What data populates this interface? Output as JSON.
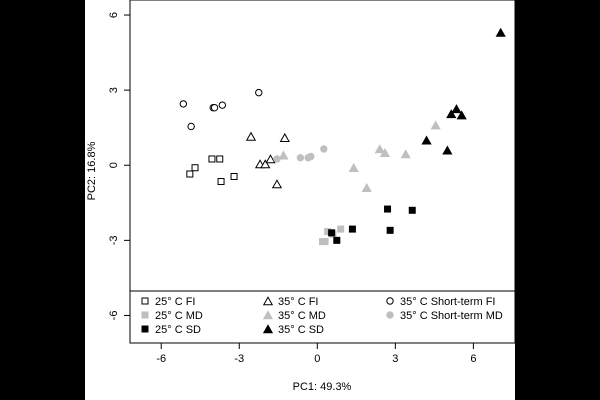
{
  "chart_data": {
    "type": "scatter",
    "xlabel": "PC1: 49.3%",
    "ylabel": "PC2: 16.8%",
    "xlim": [
      -7.2,
      7.6
    ],
    "ylim": [
      -7.1,
      6.6
    ],
    "xticks": [
      -6,
      -3,
      0,
      3,
      6
    ],
    "yticks": [
      -6,
      -3,
      0,
      3,
      6
    ],
    "xtick_labels": [
      "-6",
      "-3",
      "0",
      "3",
      "6"
    ],
    "ytick_labels": [
      "-6",
      "-3",
      "0",
      "3",
      "6"
    ],
    "grid": false,
    "legend_position": "bottom, inside plot",
    "series": [
      {
        "name": "25° C FI",
        "marker": "open-square",
        "color": "#000000",
        "points": [
          [
            -4.9,
            -0.35
          ],
          [
            -4.7,
            -0.1
          ],
          [
            -4.05,
            0.25
          ],
          [
            -3.75,
            0.25
          ],
          [
            -3.7,
            -0.65
          ],
          [
            -3.2,
            -0.45
          ]
        ]
      },
      {
        "name": "35° C FI",
        "marker": "open-triangle",
        "color": "#000000",
        "points": [
          [
            -2.55,
            1.15
          ],
          [
            -2.2,
            0.05
          ],
          [
            -2.0,
            0.05
          ],
          [
            -1.8,
            0.25
          ],
          [
            -1.55,
            -0.75
          ],
          [
            -1.25,
            1.1
          ]
        ]
      },
      {
        "name": "35° C Short-term FI",
        "marker": "open-circle",
        "color": "#000000",
        "points": [
          [
            -5.15,
            2.45
          ],
          [
            -4.85,
            1.55
          ],
          [
            -4.0,
            2.3
          ],
          [
            -3.95,
            2.3
          ],
          [
            -3.65,
            2.4
          ],
          [
            -2.25,
            2.9
          ]
        ]
      },
      {
        "name": "25° C MD",
        "marker": "filled-square",
        "color": "#bfbfbf",
        "points": [
          [
            0.2,
            -3.05
          ],
          [
            0.3,
            -3.05
          ],
          [
            0.4,
            -2.65
          ],
          [
            0.6,
            -2.75
          ],
          [
            0.9,
            -2.55
          ]
        ]
      },
      {
        "name": "35° C MD",
        "marker": "filled-triangle",
        "color": "#bfbfbf",
        "points": [
          [
            -1.3,
            0.4
          ],
          [
            1.4,
            -0.1
          ],
          [
            1.9,
            -0.9
          ],
          [
            2.4,
            0.65
          ],
          [
            2.6,
            0.5
          ],
          [
            3.4,
            0.45
          ],
          [
            4.55,
            1.6
          ]
        ]
      },
      {
        "name": "35° C Short-term MD",
        "marker": "filled-circle",
        "color": "#bfbfbf",
        "points": [
          [
            -1.55,
            0.25
          ],
          [
            -0.65,
            0.3
          ],
          [
            -0.35,
            0.3
          ],
          [
            -0.25,
            0.35
          ],
          [
            0.25,
            0.65
          ]
        ]
      },
      {
        "name": "25° C SD",
        "marker": "filled-square",
        "color": "#000000",
        "points": [
          [
            0.55,
            -2.7
          ],
          [
            0.75,
            -3.0
          ],
          [
            1.35,
            -2.55
          ],
          [
            2.7,
            -1.75
          ],
          [
            2.8,
            -2.6
          ],
          [
            3.65,
            -1.8
          ]
        ]
      },
      {
        "name": "35° C SD",
        "marker": "filled-triangle",
        "color": "#000000",
        "points": [
          [
            4.2,
            1.0
          ],
          [
            5.0,
            0.6
          ],
          [
            5.15,
            2.05
          ],
          [
            5.35,
            2.25
          ],
          [
            5.55,
            2.0
          ],
          [
            7.05,
            5.3
          ]
        ]
      }
    ],
    "legend": {
      "columns": [
        [
          "25° C FI",
          "25° C MD",
          "25° C SD"
        ],
        [
          "35° C FI",
          "35° C MD",
          "35° C SD"
        ],
        [
          "35° C Short-term FI",
          "35° C Short-term MD"
        ]
      ]
    }
  }
}
